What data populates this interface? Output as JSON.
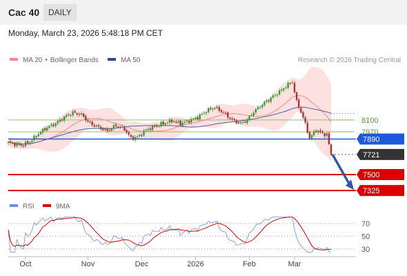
{
  "header": {
    "title": "Cac 40",
    "period": "DAILY"
  },
  "timestamp": "Monday, March 23, 2026 5:48:18 PM CET",
  "legend": {
    "bollinger": "MA 20 + Bollinger Bands",
    "ma50": "MA 50",
    "copyright": "Research © 2026 Trading Central"
  },
  "rsi_legend": {
    "rsi": "RSI",
    "ma9": "9MA"
  },
  "colors": {
    "bull": "#2e9e2e",
    "bear": "#b03030",
    "band_fill": "#fde0e0",
    "ma20": "#f08a8a",
    "ma50": "#4a5f9e",
    "support": "#dd0000",
    "pivot": "#1a5adb",
    "last": "#333333",
    "arrow": "#2e5aa8",
    "rsi": "#6a8ee0",
    "rsi_ma": "#dd0000",
    "resistance": "#8dc46a"
  },
  "chart_data": {
    "type": "candlestick",
    "x_ticks": [
      "Oct",
      "Nov",
      "Dec",
      "2026",
      "Feb",
      "Mar"
    ],
    "price_levels": [
      {
        "value": 8100,
        "label": "8100",
        "kind": "resistance"
      },
      {
        "value": 7970,
        "label": "7970",
        "kind": "resistance"
      },
      {
        "value": 7890,
        "label": "7890",
        "kind": "pivot"
      },
      {
        "value": 7721,
        "label": "7721",
        "kind": "last"
      },
      {
        "value": 7500,
        "label": "7500",
        "kind": "support"
      },
      {
        "value": 7325,
        "label": "7325",
        "kind": "support"
      }
    ],
    "price_range": [
      7280,
      8660
    ],
    "price_anchors": [
      {
        "i": 0,
        "v": 7850
      },
      {
        "i": 6,
        "v": 7820
      },
      {
        "i": 10,
        "v": 7860
      },
      {
        "i": 14,
        "v": 7950
      },
      {
        "i": 18,
        "v": 8020
      },
      {
        "i": 22,
        "v": 8060
      },
      {
        "i": 26,
        "v": 8130
      },
      {
        "i": 30,
        "v": 8180
      },
      {
        "i": 34,
        "v": 8160
      },
      {
        "i": 38,
        "v": 8060
      },
      {
        "i": 42,
        "v": 8020
      },
      {
        "i": 46,
        "v": 7980
      },
      {
        "i": 50,
        "v": 8040
      },
      {
        "i": 54,
        "v": 8000
      },
      {
        "i": 57,
        "v": 7900
      },
      {
        "i": 60,
        "v": 7910
      },
      {
        "i": 64,
        "v": 7990
      },
      {
        "i": 68,
        "v": 8030
      },
      {
        "i": 72,
        "v": 8060
      },
      {
        "i": 76,
        "v": 8090
      },
      {
        "i": 80,
        "v": 8060
      },
      {
        "i": 84,
        "v": 8090
      },
      {
        "i": 88,
        "v": 8130
      },
      {
        "i": 92,
        "v": 8200
      },
      {
        "i": 96,
        "v": 8240
      },
      {
        "i": 100,
        "v": 8180
      },
      {
        "i": 104,
        "v": 8100
      },
      {
        "i": 108,
        "v": 8060
      },
      {
        "i": 111,
        "v": 8100
      },
      {
        "i": 114,
        "v": 8190
      },
      {
        "i": 118,
        "v": 8270
      },
      {
        "i": 122,
        "v": 8340
      },
      {
        "i": 126,
        "v": 8410
      },
      {
        "i": 130,
        "v": 8490
      },
      {
        "i": 132,
        "v": 8520
      },
      {
        "i": 134,
        "v": 8300
      },
      {
        "i": 137,
        "v": 8130
      },
      {
        "i": 140,
        "v": 7900
      },
      {
        "i": 143,
        "v": 7990
      },
      {
        "i": 146,
        "v": 7950
      },
      {
        "i": 148,
        "v": 7940
      },
      {
        "i": 150,
        "v": 7721
      }
    ],
    "rsi_levels": [
      {
        "value": 70,
        "label": "70"
      },
      {
        "value": 50,
        "label": "50"
      },
      {
        "value": 30,
        "label": "30"
      }
    ],
    "rsi_range": [
      20,
      85
    ],
    "forecast_target": 7325
  }
}
